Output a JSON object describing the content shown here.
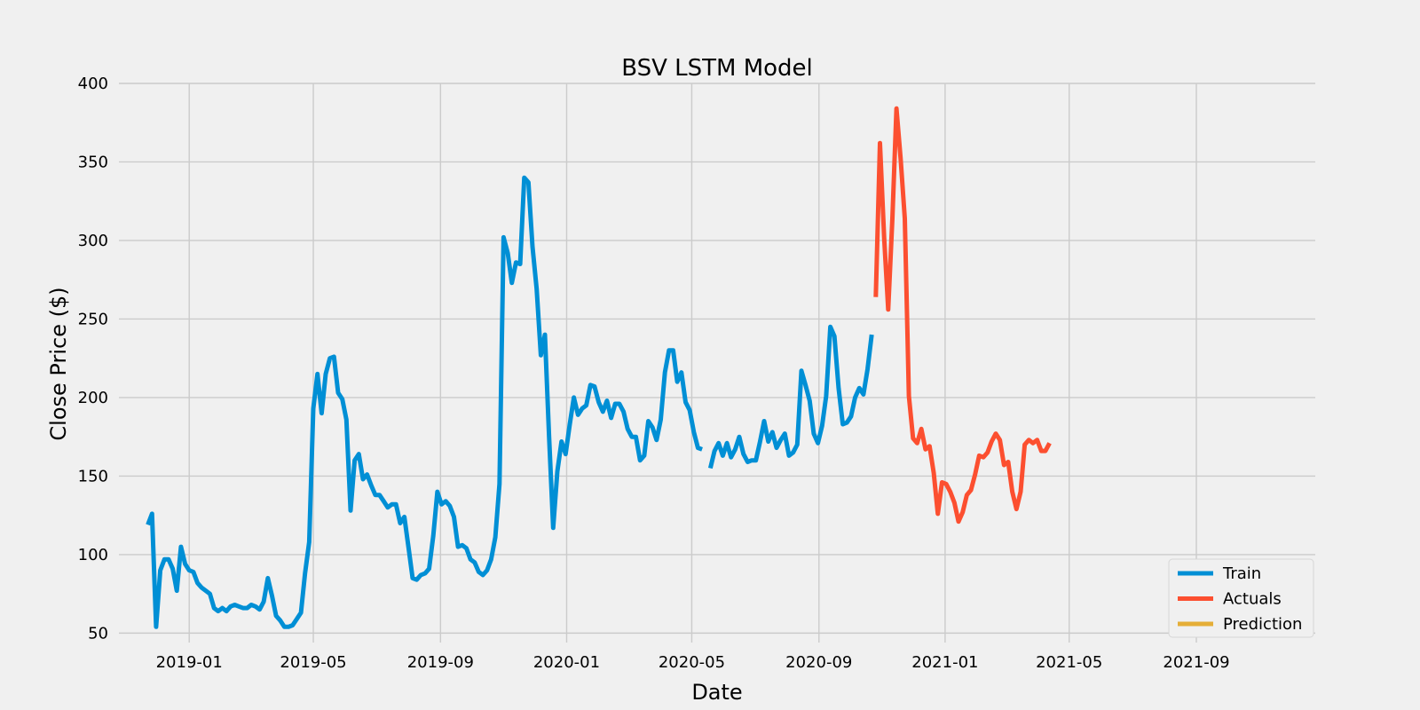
{
  "chart_data": {
    "type": "line",
    "title": "BSV LSTM Model",
    "xlabel": "Date",
    "ylabel": "Close Price ($)",
    "xlim": [
      "2018-10-25",
      "2021-12-25"
    ],
    "ylim": [
      44,
      400
    ],
    "x_ticks": [
      "2019-01",
      "2019-05",
      "2019-09",
      "2020-01",
      "2020-05",
      "2020-09",
      "2021-01",
      "2021-05",
      "2021-09"
    ],
    "x_tick_dates": [
      "2019-01-01",
      "2019-05-01",
      "2019-09-01",
      "2020-01-01",
      "2020-05-01",
      "2020-09-01",
      "2021-01-01",
      "2021-05-01",
      "2021-09-01"
    ],
    "y_ticks": [
      50,
      100,
      150,
      200,
      250,
      300,
      350,
      400
    ],
    "grid": true,
    "legend_position": "lower-right",
    "series": [
      {
        "name": "Train",
        "color": "#008fd5",
        "points": [
          [
            "2018-11-22",
            119
          ],
          [
            "2018-11-26",
            126
          ],
          [
            "2018-11-30",
            54
          ],
          [
            "2018-12-04",
            90
          ],
          [
            "2018-12-08",
            97
          ],
          [
            "2018-12-12",
            97
          ],
          [
            "2018-12-16",
            91
          ],
          [
            "2018-12-20",
            77
          ],
          [
            "2018-12-24",
            105
          ],
          [
            "2018-12-28",
            94
          ],
          [
            "2019-01-01",
            90
          ],
          [
            "2019-01-05",
            89
          ],
          [
            "2019-01-09",
            82
          ],
          [
            "2019-01-13",
            79
          ],
          [
            "2019-01-17",
            77
          ],
          [
            "2019-01-21",
            75
          ],
          [
            "2019-01-25",
            66
          ],
          [
            "2019-01-29",
            64
          ],
          [
            "2019-02-02",
            66
          ],
          [
            "2019-02-06",
            64
          ],
          [
            "2019-02-10",
            67
          ],
          [
            "2019-02-14",
            68
          ],
          [
            "2019-02-18",
            67
          ],
          [
            "2019-02-22",
            66
          ],
          [
            "2019-02-26",
            66
          ],
          [
            "2019-03-02",
            68
          ],
          [
            "2019-03-06",
            67
          ],
          [
            "2019-03-10",
            65
          ],
          [
            "2019-03-14",
            70
          ],
          [
            "2019-03-18",
            85
          ],
          [
            "2019-03-22",
            74
          ],
          [
            "2019-03-26",
            61
          ],
          [
            "2019-03-30",
            58
          ],
          [
            "2019-04-03",
            54
          ],
          [
            "2019-04-07",
            54
          ],
          [
            "2019-04-11",
            55
          ],
          [
            "2019-04-15",
            59
          ],
          [
            "2019-04-19",
            63
          ],
          [
            "2019-04-23",
            88
          ],
          [
            "2019-04-27",
            108
          ],
          [
            "2019-05-01",
            193
          ],
          [
            "2019-05-05",
            215
          ],
          [
            "2019-05-09",
            190
          ],
          [
            "2019-05-13",
            215
          ],
          [
            "2019-05-17",
            225
          ],
          [
            "2019-05-21",
            226
          ],
          [
            "2019-05-25",
            203
          ],
          [
            "2019-05-29",
            199
          ],
          [
            "2019-06-02",
            186
          ],
          [
            "2019-06-06",
            128
          ],
          [
            "2019-06-10",
            160
          ],
          [
            "2019-06-14",
            164
          ],
          [
            "2019-06-18",
            148
          ],
          [
            "2019-06-22",
            151
          ],
          [
            "2019-06-26",
            144
          ],
          [
            "2019-06-30",
            138
          ],
          [
            "2019-07-04",
            138
          ],
          [
            "2019-07-08",
            134
          ],
          [
            "2019-07-12",
            130
          ],
          [
            "2019-07-16",
            132
          ],
          [
            "2019-07-20",
            132
          ],
          [
            "2019-07-24",
            120
          ],
          [
            "2019-07-28",
            124
          ],
          [
            "2019-08-01",
            105
          ],
          [
            "2019-08-05",
            85
          ],
          [
            "2019-08-09",
            84
          ],
          [
            "2019-08-13",
            87
          ],
          [
            "2019-08-17",
            88
          ],
          [
            "2019-08-21",
            91
          ],
          [
            "2019-08-25",
            112
          ],
          [
            "2019-08-29",
            140
          ],
          [
            "2019-09-02",
            132
          ],
          [
            "2019-09-06",
            134
          ],
          [
            "2019-09-10",
            131
          ],
          [
            "2019-09-14",
            124
          ],
          [
            "2019-09-18",
            105
          ],
          [
            "2019-09-22",
            106
          ],
          [
            "2019-09-26",
            104
          ],
          [
            "2019-09-30",
            97
          ],
          [
            "2019-10-04",
            95
          ],
          [
            "2019-10-08",
            89
          ],
          [
            "2019-10-12",
            87
          ],
          [
            "2019-10-16",
            90
          ],
          [
            "2019-10-20",
            97
          ],
          [
            "2019-10-24",
            111
          ],
          [
            "2019-10-28",
            145
          ],
          [
            "2019-11-01",
            302
          ],
          [
            "2019-11-05",
            292
          ],
          [
            "2019-11-09",
            273
          ],
          [
            "2019-11-13",
            286
          ],
          [
            "2019-11-17",
            285
          ],
          [
            "2019-11-21",
            340
          ],
          [
            "2019-11-25",
            337
          ],
          [
            "2019-11-29",
            296
          ],
          [
            "2019-12-03",
            269
          ],
          [
            "2019-12-07",
            227
          ],
          [
            "2019-12-11",
            240
          ],
          [
            "2019-12-15",
            175
          ],
          [
            "2019-12-19",
            117
          ],
          [
            "2019-12-23",
            153
          ],
          [
            "2019-12-27",
            172
          ],
          [
            "2019-12-31",
            164
          ],
          [
            "2020-01-04",
            183
          ],
          [
            "2020-01-08",
            200
          ],
          [
            "2020-01-12",
            189
          ],
          [
            "2020-01-16",
            193
          ],
          [
            "2020-01-20",
            195
          ],
          [
            "2020-01-24",
            208
          ],
          [
            "2020-01-28",
            207
          ],
          [
            "2020-02-01",
            197
          ],
          [
            "2020-02-05",
            191
          ],
          [
            "2020-02-09",
            198
          ],
          [
            "2020-02-13",
            187
          ],
          [
            "2020-02-17",
            196
          ],
          [
            "2020-02-21",
            196
          ],
          [
            "2020-02-25",
            191
          ],
          [
            "2020-02-29",
            180
          ],
          [
            "2020-03-04",
            175
          ],
          [
            "2020-03-08",
            175
          ],
          [
            "2020-03-12",
            160
          ],
          [
            "2020-03-16",
            163
          ],
          [
            "2020-03-20",
            185
          ],
          [
            "2020-03-24",
            181
          ],
          [
            "2020-03-28",
            173
          ],
          [
            "2020-04-01",
            186
          ],
          [
            "2020-04-05",
            216
          ],
          [
            "2020-04-09",
            230
          ],
          [
            "2020-04-13",
            230
          ],
          [
            "2020-04-17",
            210
          ],
          [
            "2020-04-21",
            216
          ],
          [
            "2020-04-25",
            197
          ],
          [
            "2020-04-29",
            192
          ],
          [
            "2020-05-03",
            178
          ],
          [
            "2020-05-07",
            168
          ],
          [
            "2020-05-11",
            167
          ]
        ]
      },
      {
        "name": "Train",
        "color": "#008fd5",
        "legend": false,
        "points": [
          [
            "2020-05-19",
            155
          ],
          [
            "2020-05-23",
            166
          ],
          [
            "2020-05-27",
            171
          ],
          [
            "2020-05-31",
            163
          ],
          [
            "2020-06-04",
            171
          ],
          [
            "2020-06-08",
            162
          ],
          [
            "2020-06-12",
            167
          ],
          [
            "2020-06-16",
            175
          ],
          [
            "2020-06-20",
            164
          ],
          [
            "2020-06-24",
            159
          ],
          [
            "2020-06-28",
            160
          ],
          [
            "2020-07-02",
            160
          ],
          [
            "2020-07-06",
            172
          ],
          [
            "2020-07-10",
            185
          ],
          [
            "2020-07-14",
            172
          ],
          [
            "2020-07-18",
            178
          ],
          [
            "2020-07-22",
            168
          ],
          [
            "2020-07-26",
            173
          ],
          [
            "2020-07-30",
            177
          ],
          [
            "2020-08-03",
            163
          ],
          [
            "2020-08-07",
            165
          ],
          [
            "2020-08-11",
            170
          ],
          [
            "2020-08-15",
            217
          ],
          [
            "2020-08-19",
            208
          ],
          [
            "2020-08-23",
            198
          ],
          [
            "2020-08-27",
            177
          ],
          [
            "2020-08-31",
            171
          ],
          [
            "2020-09-04",
            182
          ],
          [
            "2020-09-08",
            201
          ],
          [
            "2020-09-12",
            245
          ],
          [
            "2020-09-16",
            239
          ],
          [
            "2020-09-20",
            206
          ],
          [
            "2020-09-24",
            183
          ],
          [
            "2020-09-28",
            184
          ],
          [
            "2020-10-02",
            188
          ],
          [
            "2020-10-06",
            200
          ],
          [
            "2020-10-10",
            206
          ],
          [
            "2020-10-14",
            202
          ],
          [
            "2020-10-18",
            218
          ],
          [
            "2020-10-22",
            240
          ]
        ]
      },
      {
        "name": "Actuals",
        "color": "#fc4f30",
        "points": [
          [
            "2020-10-26",
            264
          ],
          [
            "2020-10-30",
            362
          ],
          [
            "2020-11-03",
            302
          ],
          [
            "2020-11-07",
            256
          ],
          [
            "2020-11-11",
            314
          ],
          [
            "2020-11-15",
            384
          ],
          [
            "2020-11-19",
            352
          ],
          [
            "2020-11-23",
            314
          ],
          [
            "2020-11-27",
            201
          ],
          [
            "2020-12-01",
            174
          ],
          [
            "2020-12-05",
            171
          ],
          [
            "2020-12-09",
            180
          ],
          [
            "2020-12-13",
            167
          ],
          [
            "2020-12-17",
            169
          ],
          [
            "2020-12-21",
            152
          ],
          [
            "2020-12-25",
            126
          ],
          [
            "2020-12-29",
            146
          ],
          [
            "2021-01-02",
            145
          ],
          [
            "2021-01-06",
            140
          ],
          [
            "2021-01-10",
            133
          ],
          [
            "2021-01-14",
            121
          ],
          [
            "2021-01-18",
            127
          ],
          [
            "2021-01-22",
            138
          ],
          [
            "2021-01-26",
            141
          ],
          [
            "2021-01-30",
            151
          ],
          [
            "2021-02-03",
            163
          ],
          [
            "2021-02-07",
            162
          ],
          [
            "2021-02-11",
            165
          ],
          [
            "2021-02-15",
            172
          ],
          [
            "2021-02-19",
            177
          ],
          [
            "2021-02-23",
            173
          ],
          [
            "2021-02-27",
            157
          ],
          [
            "2021-03-03",
            159
          ],
          [
            "2021-03-07",
            140
          ],
          [
            "2021-03-11",
            129
          ],
          [
            "2021-03-15",
            140
          ],
          [
            "2021-03-19",
            170
          ],
          [
            "2021-03-23",
            173
          ],
          [
            "2021-03-27",
            171
          ],
          [
            "2021-03-31",
            173
          ],
          [
            "2021-04-04",
            166
          ],
          [
            "2021-04-08",
            166
          ],
          [
            "2021-04-12",
            171
          ]
        ]
      },
      {
        "name": "Prediction",
        "color": "#e5ae38",
        "points": []
      }
    ]
  }
}
